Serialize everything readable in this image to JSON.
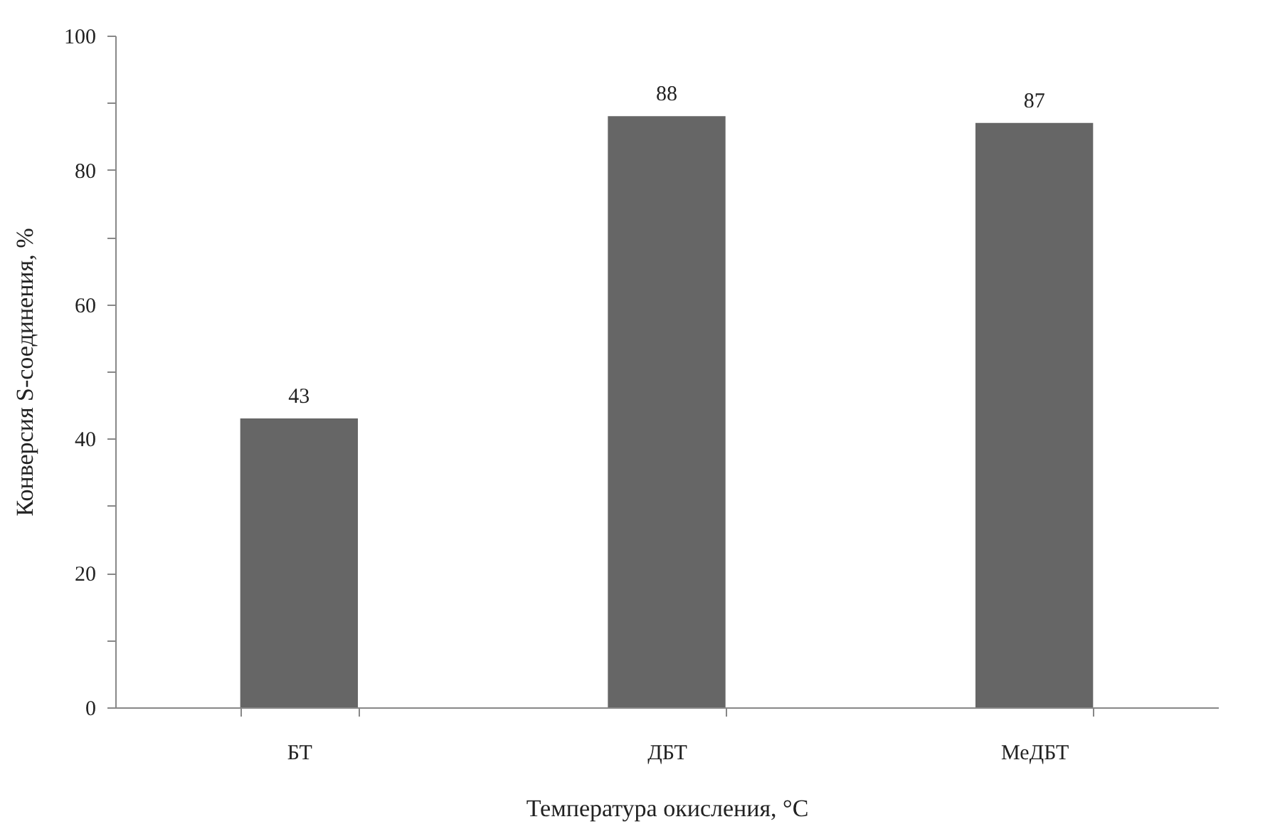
{
  "chart_data": {
    "type": "bar",
    "xlabel": "Температура окисления, °C",
    "ylabel": "Конверсия S-соединения, %",
    "categories": [
      "БТ",
      "ДБТ",
      "МеДБТ"
    ],
    "values": [
      43,
      88,
      87
    ],
    "color": "#666666",
    "data_labels": true,
    "ylim": [
      0,
      100
    ],
    "yticks": [
      0,
      {
        "value": 10,
        "label": null
      },
      20,
      {
        "value": 30,
        "label": null
      },
      40,
      {
        "value": 50,
        "label": null
      },
      60,
      {
        "value": 70,
        "label": null
      },
      80,
      {
        "value": 90,
        "label": null
      },
      100
    ],
    "grid": false
  }
}
